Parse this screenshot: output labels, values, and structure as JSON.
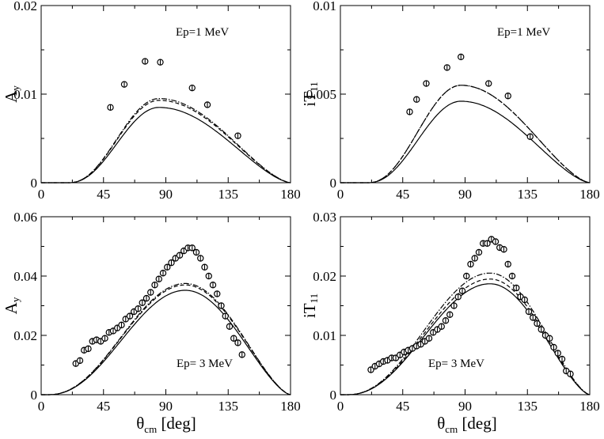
{
  "chart_data": [
    {
      "type": "scatter",
      "panel": "top-left",
      "annotation": "Ep=1 MeV",
      "ylabel": "A",
      "ylabel_sub": "y",
      "xlabel": "",
      "xlim": [
        0,
        180
      ],
      "ylim": [
        0,
        0.02
      ],
      "xticks": [
        "0",
        "45",
        "90",
        "135",
        "180"
      ],
      "yticks": [
        "0",
        "0.01",
        "0.02"
      ],
      "data_points": {
        "x": [
          50,
          60,
          75,
          86,
          109,
          120,
          142
        ],
        "y": [
          0.0085,
          0.0111,
          0.0137,
          0.0136,
          0.0107,
          0.0088,
          0.0053
        ]
      },
      "series": [
        {
          "name": "solid",
          "dash": "",
          "peak_x": 85,
          "peak_y": 0.0085,
          "onset": 20
        },
        {
          "name": "dashed",
          "dash": "5,3",
          "peak_x": 85,
          "peak_y": 0.0093,
          "onset": 20
        },
        {
          "name": "dot-dashed",
          "dash": "7,2,1.5,2",
          "peak_x": 85,
          "peak_y": 0.0095,
          "onset": 20
        }
      ]
    },
    {
      "type": "scatter",
      "panel": "top-right",
      "annotation": "Ep=1 MeV",
      "ylabel": "iT",
      "ylabel_sub": "11",
      "xlabel": "",
      "xlim": [
        0,
        180
      ],
      "ylim": [
        0,
        0.01
      ],
      "xticks": [
        "0",
        "45",
        "90",
        "135",
        "180"
      ],
      "yticks": [
        "0",
        "0.005",
        "0.01"
      ],
      "data_points": {
        "x": [
          50,
          55,
          62,
          77,
          87,
          107,
          121,
          137
        ],
        "y": [
          0.004,
          0.0047,
          0.0056,
          0.0065,
          0.0071,
          0.0056,
          0.0049,
          0.0026
        ]
      },
      "series": [
        {
          "name": "solid",
          "dash": "",
          "peak_x": 87,
          "peak_y": 0.0046,
          "onset": 20
        },
        {
          "name": "dashed",
          "dash": "5,3",
          "peak_x": 87,
          "peak_y": 0.0055,
          "onset": 20
        },
        {
          "name": "dot-dashed",
          "dash": "7,2,1.5,2",
          "peak_x": 87,
          "peak_y": 0.0055,
          "onset": 20
        }
      ]
    },
    {
      "type": "scatter",
      "panel": "bottom-left",
      "annotation": "Ep= 3 MeV",
      "ylabel": "A",
      "ylabel_sub": "y",
      "xlabel": "θ",
      "xlabel_sub": "cm",
      "xlabel_unit": "[deg]",
      "xlim": [
        0,
        180
      ],
      "ylim": [
        0,
        0.06
      ],
      "xticks": [
        "0",
        "45",
        "90",
        "135",
        "180"
      ],
      "yticks": [
        "0",
        "0.02",
        "0.04",
        "0.06"
      ],
      "data_points": {
        "x": [
          25,
          28,
          31,
          34,
          37,
          40,
          43,
          46,
          49,
          52,
          55,
          58,
          61,
          64,
          67,
          70,
          73,
          76,
          79,
          82,
          85,
          88,
          91,
          94,
          97,
          100,
          103,
          106,
          109,
          112,
          115,
          118,
          121,
          124,
          127,
          130,
          133,
          136,
          139,
          142,
          145
        ],
        "y": [
          0.0105,
          0.0115,
          0.015,
          0.0155,
          0.018,
          0.0185,
          0.018,
          0.019,
          0.021,
          0.0215,
          0.0225,
          0.0235,
          0.0255,
          0.0265,
          0.028,
          0.029,
          0.031,
          0.0325,
          0.0345,
          0.037,
          0.039,
          0.041,
          0.043,
          0.0445,
          0.046,
          0.047,
          0.0485,
          0.0495,
          0.0495,
          0.048,
          0.046,
          0.043,
          0.04,
          0.037,
          0.034,
          0.03,
          0.0265,
          0.023,
          0.019,
          0.0175,
          0.0135
        ]
      },
      "series": [
        {
          "name": "solid",
          "dash": "",
          "peak_x": 104,
          "peak_y": 0.0352,
          "onset": 5
        },
        {
          "name": "dashed",
          "dash": "5,3",
          "peak_x": 104,
          "peak_y": 0.037,
          "onset": 5
        },
        {
          "name": "dot-dashed",
          "dash": "7,2,1.5,2",
          "peak_x": 104,
          "peak_y": 0.0375,
          "onset": 5
        }
      ]
    },
    {
      "type": "scatter",
      "panel": "bottom-right",
      "annotation": "Ep= 3 MeV",
      "ylabel": "iT",
      "ylabel_sub": "11",
      "xlabel": "θ",
      "xlabel_sub": "cm",
      "xlabel_unit": "[deg]",
      "xlim": [
        0,
        180
      ],
      "ylim": [
        0,
        0.03
      ],
      "xticks": [
        "0",
        "45",
        "90",
        "135",
        "180"
      ],
      "yticks": [
        "0",
        "0.01",
        "0.02",
        "0.03"
      ],
      "data_points": {
        "x": [
          22,
          25,
          28,
          31,
          34,
          37,
          40,
          43,
          46,
          49,
          52,
          55,
          58,
          61,
          64,
          67,
          70,
          73,
          76,
          79,
          82,
          85,
          88,
          91,
          94,
          97,
          100,
          103,
          106,
          109,
          112,
          115,
          118,
          121,
          124,
          127,
          130,
          133,
          136,
          139,
          142,
          145,
          148,
          151,
          154,
          157,
          160,
          163,
          166
        ],
        "y": [
          0.0042,
          0.0048,
          0.0052,
          0.0056,
          0.0058,
          0.0062,
          0.0062,
          0.0067,
          0.0072,
          0.0075,
          0.0078,
          0.0082,
          0.0085,
          0.009,
          0.0095,
          0.0105,
          0.011,
          0.0115,
          0.0125,
          0.0135,
          0.015,
          0.0165,
          0.0175,
          0.02,
          0.022,
          0.023,
          0.024,
          0.0255,
          0.0255,
          0.0262,
          0.0258,
          0.0248,
          0.0245,
          0.022,
          0.02,
          0.018,
          0.0165,
          0.016,
          0.014,
          0.013,
          0.012,
          0.011,
          0.01,
          0.0095,
          0.008,
          0.007,
          0.006,
          0.004,
          0.0035
        ]
      },
      "series": [
        {
          "name": "solid",
          "dash": "",
          "peak_x": 108,
          "peak_y": 0.0187,
          "onset": 5
        },
        {
          "name": "dashed",
          "dash": "5,3",
          "peak_x": 108,
          "peak_y": 0.0195,
          "onset": 5
        },
        {
          "name": "dot-dashed",
          "dash": "7,2,1.5,2",
          "peak_x": 108,
          "peak_y": 0.0205,
          "onset": 5
        }
      ]
    }
  ]
}
